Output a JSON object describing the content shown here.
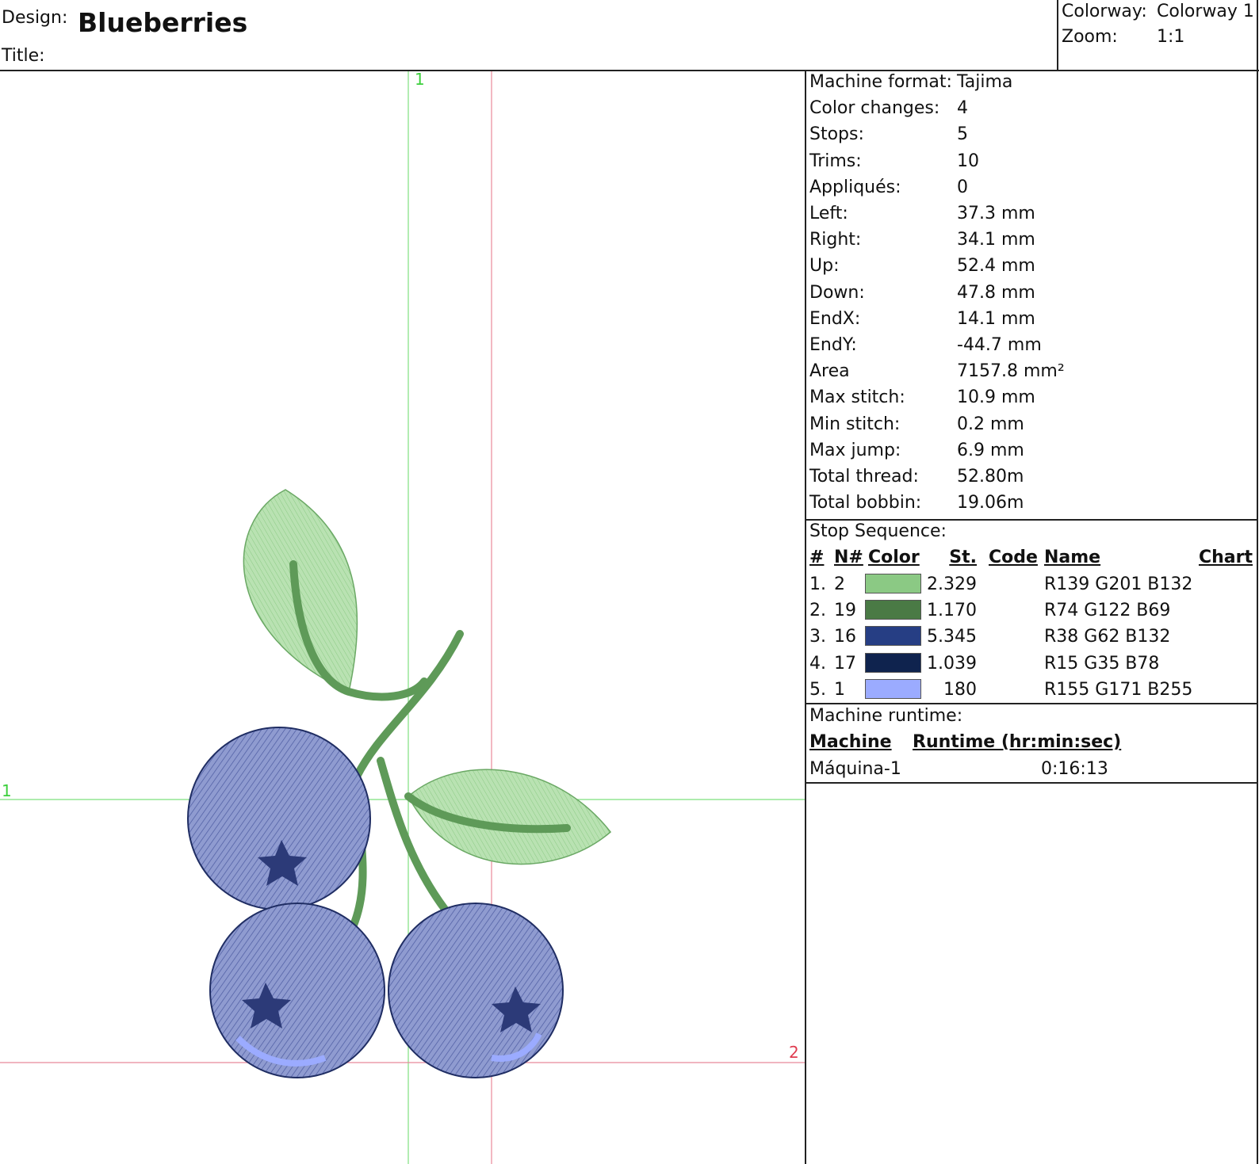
{
  "header": {
    "design_label": "Design:",
    "design": "Blueberries",
    "title_label": "Title:",
    "colorway_label": "Colorway:",
    "colorway": "Colorway 1",
    "zoom_label": "Zoom:",
    "zoom": "1:1"
  },
  "canvas": {
    "guide_labels": [
      "1",
      "1",
      "2"
    ]
  },
  "stats": [
    [
      "Machine format:",
      "Tajima"
    ],
    [
      "Color changes:",
      "4"
    ],
    [
      "Stops:",
      "5"
    ],
    [
      "Trims:",
      "10"
    ],
    [
      "Appliqués:",
      "0"
    ],
    [
      "Left:",
      "37.3 mm"
    ],
    [
      "Right:",
      "34.1 mm"
    ],
    [
      "Up:",
      "52.4 mm"
    ],
    [
      "Down:",
      "47.8 mm"
    ],
    [
      "EndX:",
      "14.1 mm"
    ],
    [
      "EndY:",
      "-44.7 mm"
    ],
    [
      "Area",
      "7157.8 mm²"
    ],
    [
      "Max stitch:",
      "10.9 mm"
    ],
    [
      "Min stitch:",
      "0.2 mm"
    ],
    [
      "Max jump:",
      "6.9 mm"
    ],
    [
      "Total thread:",
      "52.80m"
    ],
    [
      "Total bobbin:",
      "19.06m"
    ]
  ],
  "stop_sequence": {
    "title": "Stop Sequence:",
    "columns": [
      "#",
      "N#",
      "Color",
      "St.",
      "Code",
      "Name",
      "Chart"
    ],
    "rows": [
      {
        "index": "1.",
        "needle": "2",
        "color": "#8bc984",
        "stitches": "2.329",
        "name": "R139 G201 B132"
      },
      {
        "index": "2.",
        "needle": "19",
        "color": "#4a7a45",
        "stitches": "1.170",
        "name": "R74 G122 B69"
      },
      {
        "index": "3.",
        "needle": "16",
        "color": "#263e84",
        "stitches": "5.345",
        "name": "R38 G62 B132"
      },
      {
        "index": "4.",
        "needle": "17",
        "color": "#0f234e",
        "stitches": "1.039",
        "name": "R15 G35 B78"
      },
      {
        "index": "5.",
        "needle": "1",
        "color": "#9babff",
        "stitches": "180",
        "name": "R155 G171 B255"
      }
    ]
  },
  "runtime": {
    "title": "Machine runtime:",
    "columns": [
      "Machine",
      "Runtime (hr:min:sec)"
    ],
    "rows": [
      [
        "Máquina-1",
        "0:16:13"
      ]
    ]
  }
}
